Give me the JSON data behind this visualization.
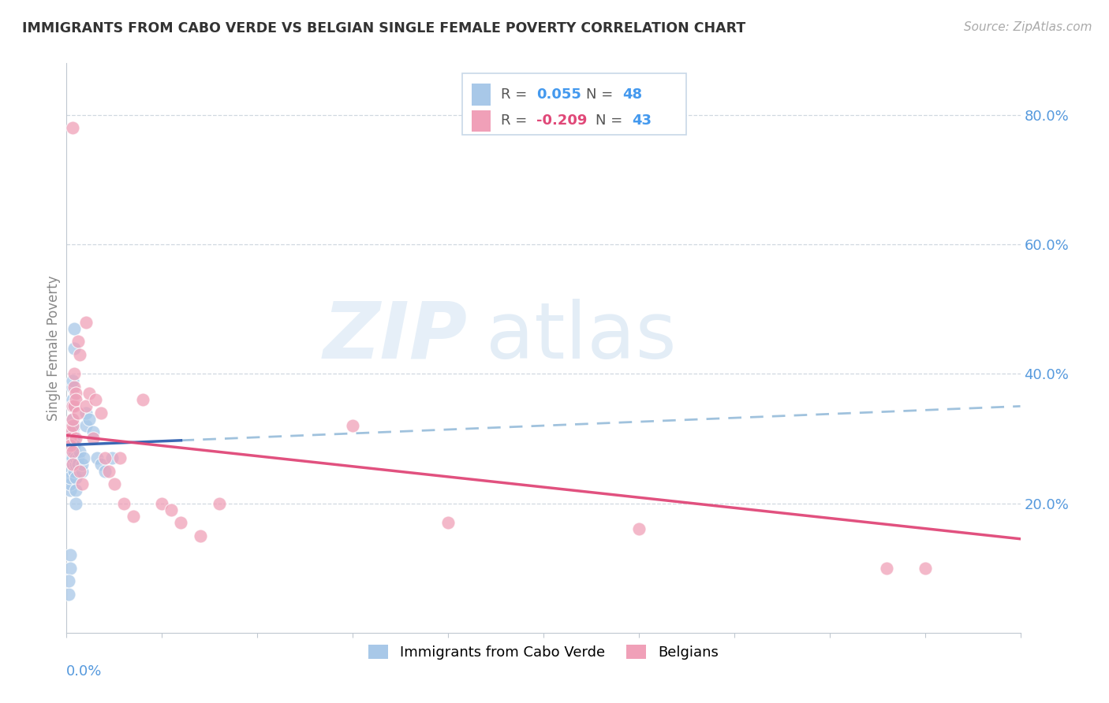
{
  "title": "IMMIGRANTS FROM CABO VERDE VS BELGIAN SINGLE FEMALE POVERTY CORRELATION CHART",
  "source": "Source: ZipAtlas.com",
  "ylabel": "Single Female Poverty",
  "yticks": [
    0.2,
    0.4,
    0.6,
    0.8
  ],
  "ytick_labels": [
    "20.0%",
    "40.0%",
    "60.0%",
    "80.0%"
  ],
  "legend_label1": "Immigrants from Cabo Verde",
  "legend_label2": "Belgians",
  "R1": 0.055,
  "N1": 48,
  "R2": -0.209,
  "N2": 43,
  "blue_color": "#a8c8e8",
  "pink_color": "#f0a0b8",
  "blue_line_color": "#3060b0",
  "pink_line_color": "#e04878",
  "dashed_line_color": "#90b8d8",
  "watermark_zip": "ZIP",
  "watermark_atlas": "atlas",
  "xlim": [
    0.0,
    0.5
  ],
  "ylim": [
    0.0,
    0.88
  ],
  "figsize": [
    14.06,
    8.92
  ],
  "dpi": 100,
  "blue_x": [
    0.002,
    0.002,
    0.003,
    0.002,
    0.002,
    0.002,
    0.003,
    0.002,
    0.002,
    0.002,
    0.003,
    0.003,
    0.003,
    0.003,
    0.003,
    0.003,
    0.003,
    0.003,
    0.003,
    0.003,
    0.004,
    0.004,
    0.004,
    0.004,
    0.004,
    0.004,
    0.004,
    0.005,
    0.005,
    0.005,
    0.005,
    0.005,
    0.006,
    0.006,
    0.007,
    0.008,
    0.008,
    0.009,
    0.01,
    0.01,
    0.012,
    0.014,
    0.016,
    0.018,
    0.02,
    0.024,
    0.001,
    0.001
  ],
  "blue_y": [
    0.27,
    0.25,
    0.26,
    0.22,
    0.23,
    0.28,
    0.3,
    0.24,
    0.12,
    0.1,
    0.28,
    0.3,
    0.31,
    0.33,
    0.36,
    0.27,
    0.35,
    0.38,
    0.29,
    0.39,
    0.44,
    0.47,
    0.3,
    0.32,
    0.25,
    0.28,
    0.29,
    0.26,
    0.27,
    0.24,
    0.22,
    0.2,
    0.27,
    0.26,
    0.28,
    0.25,
    0.26,
    0.27,
    0.32,
    0.34,
    0.33,
    0.31,
    0.27,
    0.26,
    0.25,
    0.27,
    0.06,
    0.08
  ],
  "pink_x": [
    0.002,
    0.002,
    0.002,
    0.003,
    0.003,
    0.003,
    0.003,
    0.003,
    0.003,
    0.004,
    0.004,
    0.004,
    0.005,
    0.005,
    0.005,
    0.006,
    0.006,
    0.007,
    0.007,
    0.008,
    0.01,
    0.01,
    0.012,
    0.014,
    0.015,
    0.018,
    0.02,
    0.022,
    0.025,
    0.028,
    0.03,
    0.035,
    0.04,
    0.05,
    0.055,
    0.06,
    0.07,
    0.08,
    0.15,
    0.2,
    0.3,
    0.43,
    0.45
  ],
  "pink_y": [
    0.31,
    0.3,
    0.29,
    0.32,
    0.28,
    0.78,
    0.35,
    0.33,
    0.26,
    0.38,
    0.4,
    0.35,
    0.37,
    0.3,
    0.36,
    0.34,
    0.45,
    0.43,
    0.25,
    0.23,
    0.48,
    0.35,
    0.37,
    0.3,
    0.36,
    0.34,
    0.27,
    0.25,
    0.23,
    0.27,
    0.2,
    0.18,
    0.36,
    0.2,
    0.19,
    0.17,
    0.15,
    0.2,
    0.32,
    0.17,
    0.16,
    0.1,
    0.1
  ]
}
